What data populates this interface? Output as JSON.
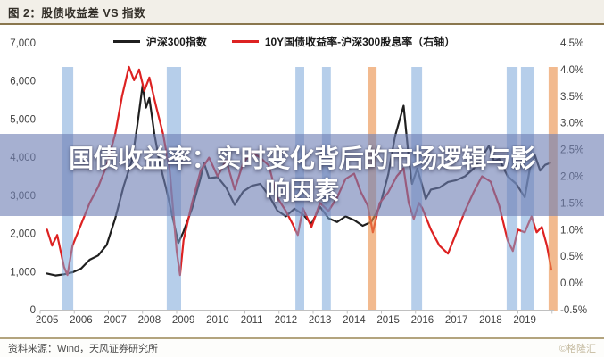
{
  "header": {
    "title": "图 2：股债收益差 VS 指数"
  },
  "legend": [
    {
      "label": "沪深300指数",
      "color": "#1f1f1f"
    },
    {
      "label": "10Y国债收益率-沪深300股息率（右轴）",
      "color": "#dd2222"
    }
  ],
  "overlay": {
    "line1": "国债收益率：实时变化背后的市场逻辑与影",
    "line2": "响因素"
  },
  "footer": {
    "source": "资料来源：Wind，天风证券研究所",
    "watermark": "©格隆汇"
  },
  "chart_data": {
    "type": "line",
    "title": "股债收益差 VS 指数",
    "grid": "off",
    "legend_position": "top-center",
    "x_tick_labels": [
      "2005",
      "2006",
      "2007",
      "2008",
      "2009",
      "2010",
      "2011",
      "2012",
      "2013",
      "2014",
      "2015",
      "2016",
      "2017",
      "2018",
      "2019"
    ],
    "left_axis": {
      "tick_labels": [
        "7,000",
        "6,000",
        "5,000",
        "4,000",
        "3,000",
        "2,000",
        "1,000",
        "0"
      ],
      "min": 0,
      "max": 7000
    },
    "right_axis": {
      "tick_labels": [
        "4.5%",
        "4.0%",
        "3.5%",
        "3.0%",
        "2.5%",
        "2.0%",
        "1.5%",
        "1.0%",
        "0.5%",
        "0.0%",
        "-0.5%"
      ],
      "min": -0.5,
      "max": 4.5
    },
    "highlight_bands": [
      {
        "from": 2005.45,
        "to": 2005.77,
        "color": "blue"
      },
      {
        "from": 2008.51,
        "to": 2008.93,
        "color": "blue"
      },
      {
        "from": 2012.28,
        "to": 2012.54,
        "color": "blue"
      },
      {
        "from": 2013.06,
        "to": 2013.32,
        "color": "blue"
      },
      {
        "from": 2014.4,
        "to": 2014.66,
        "color": "orange"
      },
      {
        "from": 2015.68,
        "to": 2015.99,
        "color": "blue"
      },
      {
        "from": 2018.47,
        "to": 2018.79,
        "color": "blue"
      },
      {
        "from": 2018.89,
        "to": 2019.28,
        "color": "blue"
      },
      {
        "from": 2019.7,
        "to": 2019.96,
        "color": "orange"
      }
    ],
    "band_colors": {
      "blue": "#7aa6d8",
      "orange": "#ea8f4a"
    },
    "series": [
      {
        "name": "沪深300指数",
        "axis": "left",
        "color": "#1f1f1f",
        "points": [
          [
            2005.0,
            950
          ],
          [
            2005.25,
            900
          ],
          [
            2005.5,
            930
          ],
          [
            2005.75,
            980
          ],
          [
            2006.0,
            1080
          ],
          [
            2006.25,
            1310
          ],
          [
            2006.5,
            1420
          ],
          [
            2006.75,
            1700
          ],
          [
            2007.0,
            2400
          ],
          [
            2007.25,
            3250
          ],
          [
            2007.5,
            3950
          ],
          [
            2007.65,
            4850
          ],
          [
            2007.8,
            5880
          ],
          [
            2007.9,
            5300
          ],
          [
            2008.0,
            5550
          ],
          [
            2008.15,
            4600
          ],
          [
            2008.3,
            3850
          ],
          [
            2008.5,
            3150
          ],
          [
            2008.7,
            2350
          ],
          [
            2008.85,
            1750
          ],
          [
            2009.0,
            2050
          ],
          [
            2009.25,
            2650
          ],
          [
            2009.5,
            3450
          ],
          [
            2009.6,
            3850
          ],
          [
            2009.75,
            3450
          ],
          [
            2010.0,
            3480
          ],
          [
            2010.25,
            3200
          ],
          [
            2010.5,
            2750
          ],
          [
            2010.75,
            3100
          ],
          [
            2011.0,
            3250
          ],
          [
            2011.25,
            3300
          ],
          [
            2011.5,
            3000
          ],
          [
            2011.75,
            2600
          ],
          [
            2012.0,
            2450
          ],
          [
            2012.25,
            2650
          ],
          [
            2012.5,
            2500
          ],
          [
            2012.75,
            2250
          ],
          [
            2013.0,
            2700
          ],
          [
            2013.25,
            2400
          ],
          [
            2013.5,
            2300
          ],
          [
            2013.75,
            2450
          ],
          [
            2014.0,
            2350
          ],
          [
            2014.25,
            2200
          ],
          [
            2014.5,
            2300
          ],
          [
            2014.75,
            2700
          ],
          [
            2015.0,
            3550
          ],
          [
            2015.2,
            4550
          ],
          [
            2015.45,
            5350
          ],
          [
            2015.6,
            4000
          ],
          [
            2015.7,
            3300
          ],
          [
            2015.85,
            3700
          ],
          [
            2016.0,
            3250
          ],
          [
            2016.1,
            2900
          ],
          [
            2016.25,
            3150
          ],
          [
            2016.5,
            3200
          ],
          [
            2016.75,
            3350
          ],
          [
            2017.0,
            3400
          ],
          [
            2017.25,
            3500
          ],
          [
            2017.5,
            3700
          ],
          [
            2017.75,
            4000
          ],
          [
            2017.95,
            4300
          ],
          [
            2018.1,
            3900
          ],
          [
            2018.25,
            3950
          ],
          [
            2018.5,
            3500
          ],
          [
            2018.75,
            3300
          ],
          [
            2019.0,
            2950
          ],
          [
            2019.15,
            3700
          ],
          [
            2019.3,
            4050
          ],
          [
            2019.45,
            3650
          ],
          [
            2019.6,
            3800
          ],
          [
            2019.75,
            3850
          ]
        ]
      },
      {
        "name": "10Y国债收益率-沪深300股息率（右轴）",
        "axis": "right",
        "color": "#dd2222",
        "points": [
          [
            2005.0,
            1.0
          ],
          [
            2005.15,
            0.7
          ],
          [
            2005.3,
            0.9
          ],
          [
            2005.5,
            0.3
          ],
          [
            2005.6,
            0.15
          ],
          [
            2005.75,
            0.7
          ],
          [
            2006.0,
            1.1
          ],
          [
            2006.25,
            1.5
          ],
          [
            2006.5,
            1.8
          ],
          [
            2006.75,
            2.2
          ],
          [
            2007.0,
            2.8
          ],
          [
            2007.2,
            3.5
          ],
          [
            2007.4,
            4.05
          ],
          [
            2007.55,
            3.8
          ],
          [
            2007.7,
            4.0
          ],
          [
            2007.85,
            3.6
          ],
          [
            2008.0,
            3.85
          ],
          [
            2008.2,
            3.3
          ],
          [
            2008.4,
            2.8
          ],
          [
            2008.6,
            2.1
          ],
          [
            2008.8,
            0.6
          ],
          [
            2008.9,
            0.15
          ],
          [
            2009.0,
            0.8
          ],
          [
            2009.25,
            1.5
          ],
          [
            2009.5,
            2.1
          ],
          [
            2009.75,
            2.35
          ],
          [
            2010.0,
            2.0
          ],
          [
            2010.25,
            2.3
          ],
          [
            2010.5,
            1.75
          ],
          [
            2010.75,
            2.25
          ],
          [
            2011.0,
            2.45
          ],
          [
            2011.25,
            2.35
          ],
          [
            2011.5,
            2.2
          ],
          [
            2011.75,
            1.6
          ],
          [
            2012.0,
            1.35
          ],
          [
            2012.2,
            1.1
          ],
          [
            2012.35,
            0.9
          ],
          [
            2012.5,
            1.4
          ],
          [
            2012.75,
            1.05
          ],
          [
            2013.0,
            1.5
          ],
          [
            2013.25,
            1.35
          ],
          [
            2013.5,
            1.6
          ],
          [
            2013.75,
            1.95
          ],
          [
            2014.0,
            2.05
          ],
          [
            2014.2,
            1.7
          ],
          [
            2014.4,
            1.45
          ],
          [
            2014.55,
            0.95
          ],
          [
            2014.75,
            1.5
          ],
          [
            2015.0,
            1.7
          ],
          [
            2015.25,
            2.0
          ],
          [
            2015.45,
            2.15
          ],
          [
            2015.6,
            1.5
          ],
          [
            2015.75,
            1.2
          ],
          [
            2015.9,
            1.5
          ],
          [
            2016.0,
            1.4
          ],
          [
            2016.25,
            1.0
          ],
          [
            2016.5,
            0.7
          ],
          [
            2016.75,
            0.55
          ],
          [
            2017.0,
            0.95
          ],
          [
            2017.25,
            1.35
          ],
          [
            2017.5,
            1.7
          ],
          [
            2017.75,
            2.0
          ],
          [
            2018.0,
            1.9
          ],
          [
            2018.25,
            1.45
          ],
          [
            2018.5,
            0.8
          ],
          [
            2018.65,
            0.6
          ],
          [
            2018.8,
            1.0
          ],
          [
            2019.0,
            0.95
          ],
          [
            2019.2,
            1.25
          ],
          [
            2019.35,
            0.95
          ],
          [
            2019.5,
            1.05
          ],
          [
            2019.65,
            0.7
          ],
          [
            2019.78,
            0.25
          ]
        ]
      }
    ]
  }
}
